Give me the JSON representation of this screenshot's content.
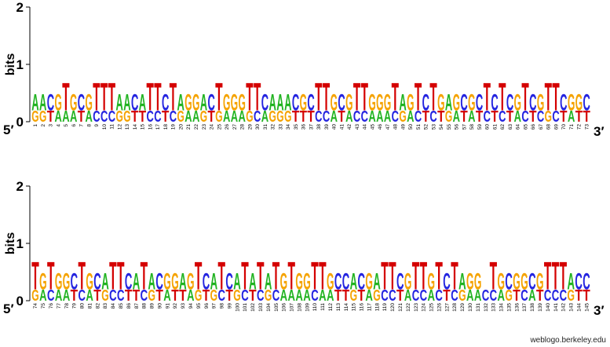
{
  "chart_data": {
    "type": "logo",
    "ylabel": "bits",
    "ylim": [
      0,
      2
    ],
    "yticks": [
      0,
      1,
      2
    ],
    "colors": {
      "A": "#21b321",
      "C": "#2424e0",
      "G": "#f5a300",
      "T": "#d40000"
    },
    "panels": [
      {
        "start_label": "5′",
        "end_label": "3′",
        "positions": [
          1,
          2,
          3,
          4,
          5,
          6,
          7,
          8,
          9,
          10,
          11,
          12,
          13,
          14,
          15,
          16,
          17,
          18,
          19,
          20,
          21,
          22,
          23,
          24,
          25,
          26,
          27,
          28,
          29,
          30,
          31,
          32,
          33,
          34,
          35,
          36,
          37,
          38,
          39,
          40,
          41,
          42,
          43,
          44,
          45,
          46,
          47,
          48,
          49,
          50,
          51,
          52,
          53,
          54,
          55,
          56,
          57,
          58,
          59,
          60,
          61,
          62,
          63,
          64,
          65,
          66,
          67,
          68,
          69,
          70,
          71,
          72,
          73
        ],
        "letters": [
          [
            "G",
            "A"
          ],
          [
            "G",
            "A"
          ],
          [
            "T",
            "C"
          ],
          [
            "A",
            "G"
          ],
          [
            "A",
            "T"
          ],
          [
            "A",
            "G"
          ],
          [
            "T",
            "C"
          ],
          [
            "A",
            "G"
          ],
          [
            "C",
            "T"
          ],
          [
            "C",
            "T"
          ],
          [
            "C",
            "T"
          ],
          [
            "G",
            "A"
          ],
          [
            "G",
            "A"
          ],
          [
            "T",
            "C"
          ],
          [
            "T",
            "A"
          ],
          [
            "C",
            "T"
          ],
          [
            "C",
            "T"
          ],
          [
            "T",
            "C"
          ],
          [
            "C",
            "T"
          ],
          [
            "G",
            "A"
          ],
          [
            "A",
            "G"
          ],
          [
            "A",
            "G"
          ],
          [
            "G",
            "A"
          ],
          [
            "T",
            "C"
          ],
          [
            "G",
            "T"
          ],
          [
            "A",
            "G"
          ],
          [
            "A",
            "G"
          ],
          [
            "A",
            "G"
          ],
          [
            "G",
            "T"
          ],
          [
            "C",
            "T"
          ],
          [
            "A",
            "C"
          ],
          [
            "G",
            "A"
          ],
          [
            "G",
            "A"
          ],
          [
            "G",
            "A"
          ],
          [
            "T",
            "C"
          ],
          [
            "T",
            "G"
          ],
          [
            "T",
            "C"
          ],
          [
            "C",
            "T"
          ],
          [
            "C",
            "T"
          ],
          [
            "A",
            "G"
          ],
          [
            "T",
            "C"
          ],
          [
            "A",
            "G"
          ],
          [
            "C",
            "T"
          ],
          [
            "C",
            "T"
          ],
          [
            "A",
            "G"
          ],
          [
            "A",
            "G"
          ],
          [
            "A",
            "G"
          ],
          [
            "C",
            "T"
          ],
          [
            "G",
            "A"
          ],
          [
            "A",
            "G"
          ],
          [
            "C",
            "T"
          ],
          [
            "T",
            "C"
          ],
          [
            "C",
            "T"
          ],
          [
            "T",
            "G"
          ],
          [
            "G",
            "A"
          ],
          [
            "A",
            "G"
          ],
          [
            "T",
            "C"
          ],
          [
            "A",
            "G"
          ],
          [
            "T",
            "C"
          ],
          [
            "C",
            "T"
          ],
          [
            "T",
            "C"
          ],
          [
            "C",
            "T"
          ],
          [
            "T",
            "C"
          ],
          [
            "A",
            "G"
          ],
          [
            "C",
            "T"
          ],
          [
            "T",
            "C"
          ],
          [
            "C",
            "G"
          ],
          [
            "G",
            "T"
          ],
          [
            "C",
            "T"
          ],
          [
            "T",
            "C"
          ],
          [
            "A",
            "G"
          ],
          [
            "T",
            "G"
          ],
          [
            "T",
            "C"
          ]
        ],
        "bits": [
          [
            0.2,
            0.3
          ],
          [
            0.2,
            0.3
          ],
          [
            0.2,
            0.3
          ],
          [
            0.2,
            0.3
          ],
          [
            0.2,
            0.5
          ],
          [
            0.2,
            0.3
          ],
          [
            0.2,
            0.3
          ],
          [
            0.2,
            0.3
          ],
          [
            0.2,
            0.5
          ],
          [
            0.2,
            0.5
          ],
          [
            0.2,
            0.5
          ],
          [
            0.2,
            0.3
          ],
          [
            0.2,
            0.3
          ],
          [
            0.2,
            0.3
          ],
          [
            0.2,
            0.3
          ],
          [
            0.2,
            0.5
          ],
          [
            0.2,
            0.5
          ],
          [
            0.2,
            0.3
          ],
          [
            0.2,
            0.5
          ],
          [
            0.2,
            0.3
          ],
          [
            0.2,
            0.3
          ],
          [
            0.2,
            0.3
          ],
          [
            0.2,
            0.3
          ],
          [
            0.2,
            0.3
          ],
          [
            0.2,
            0.5
          ],
          [
            0.2,
            0.3
          ],
          [
            0.2,
            0.3
          ],
          [
            0.2,
            0.3
          ],
          [
            0.2,
            0.5
          ],
          [
            0.2,
            0.5
          ],
          [
            0.2,
            0.3
          ],
          [
            0.2,
            0.3
          ],
          [
            0.2,
            0.3
          ],
          [
            0.2,
            0.3
          ],
          [
            0.2,
            0.3
          ],
          [
            0.2,
            0.3
          ],
          [
            0.2,
            0.3
          ],
          [
            0.2,
            0.5
          ],
          [
            0.2,
            0.5
          ],
          [
            0.2,
            0.3
          ],
          [
            0.2,
            0.3
          ],
          [
            0.2,
            0.3
          ],
          [
            0.2,
            0.5
          ],
          [
            0.2,
            0.5
          ],
          [
            0.2,
            0.3
          ],
          [
            0.2,
            0.3
          ],
          [
            0.2,
            0.3
          ],
          [
            0.2,
            0.5
          ],
          [
            0.2,
            0.3
          ],
          [
            0.2,
            0.3
          ],
          [
            0.2,
            0.5
          ],
          [
            0.2,
            0.3
          ],
          [
            0.2,
            0.5
          ],
          [
            0.2,
            0.3
          ],
          [
            0.2,
            0.3
          ],
          [
            0.2,
            0.3
          ],
          [
            0.2,
            0.3
          ],
          [
            0.2,
            0.3
          ],
          [
            0.2,
            0.3
          ],
          [
            0.2,
            0.5
          ],
          [
            0.2,
            0.3
          ],
          [
            0.2,
            0.5
          ],
          [
            0.2,
            0.3
          ],
          [
            0.2,
            0.3
          ],
          [
            0.2,
            0.5
          ],
          [
            0.2,
            0.3
          ],
          [
            0.2,
            0.3
          ],
          [
            0.2,
            0.5
          ],
          [
            0.2,
            0.5
          ],
          [
            0.2,
            0.3
          ],
          [
            0.2,
            0.3
          ],
          [
            0.2,
            0.3
          ],
          [
            0.2,
            0.3
          ]
        ]
      },
      {
        "start_label": "5′",
        "end_label": "3′",
        "positions": [
          74,
          75,
          76,
          77,
          78,
          79,
          80,
          81,
          82,
          83,
          84,
          85,
          86,
          87,
          88,
          89,
          90,
          91,
          92,
          93,
          94,
          95,
          96,
          97,
          98,
          99,
          100,
          101,
          102,
          103,
          104,
          105,
          106,
          107,
          108,
          109,
          110,
          111,
          112,
          113,
          114,
          115,
          116,
          117,
          118,
          119,
          120,
          121,
          122,
          123,
          124,
          125,
          126,
          127,
          128,
          129,
          130,
          131,
          132,
          133,
          134,
          135,
          136,
          137,
          138,
          139,
          140,
          141,
          142,
          143,
          144,
          145
        ],
        "letters": [
          [
            "G",
            "T"
          ],
          [
            "A",
            "G"
          ],
          [
            "C",
            "T"
          ],
          [
            "A",
            "G"
          ],
          [
            "A",
            "G"
          ],
          [
            "T",
            "C"
          ],
          [
            "C",
            "T"
          ],
          [
            "A",
            "G"
          ],
          [
            "T",
            "C"
          ],
          [
            "G",
            "A"
          ],
          [
            "C",
            "T"
          ],
          [
            "C",
            "T"
          ],
          [
            "T",
            "C"
          ],
          [
            "T",
            "A"
          ],
          [
            "C",
            "T"
          ],
          [
            "G",
            "A"
          ],
          [
            "T",
            "C"
          ],
          [
            "A",
            "G"
          ],
          [
            "T",
            "G"
          ],
          [
            "T",
            "A"
          ],
          [
            "A",
            "G"
          ],
          [
            "G",
            "T"
          ],
          [
            "T",
            "C"
          ],
          [
            "G",
            "A"
          ],
          [
            "C",
            "T"
          ],
          [
            "T",
            "C"
          ],
          [
            "G",
            "A"
          ],
          [
            "C",
            "T"
          ],
          [
            "T",
            "A"
          ],
          [
            "C",
            "T"
          ],
          [
            "G",
            "A"
          ],
          [
            "C",
            "T"
          ],
          [
            "A",
            "G"
          ],
          [
            "A",
            "T"
          ],
          [
            "A",
            "G"
          ],
          [
            "A",
            "G"
          ],
          [
            "C",
            "T"
          ],
          [
            "A",
            "T"
          ],
          [
            "A",
            "G"
          ],
          [
            "T",
            "C"
          ],
          [
            "T",
            "C"
          ],
          [
            "G",
            "A"
          ],
          [
            "T",
            "C"
          ],
          [
            "A",
            "G"
          ],
          [
            "G",
            "A"
          ],
          [
            "C",
            "T"
          ],
          [
            "C",
            "T"
          ],
          [
            "T",
            "C"
          ],
          [
            "A",
            "G"
          ],
          [
            "C",
            "T"
          ],
          [
            "C",
            "T"
          ],
          [
            "A",
            "G"
          ],
          [
            "C",
            "T"
          ],
          [
            "T",
            "C"
          ],
          [
            "C",
            "T"
          ],
          [
            "G",
            "A"
          ],
          [
            "A",
            "G"
          ],
          [
            "A",
            "G"
          ],
          [
            "C"
          ],
          [
            "C",
            "T"
          ],
          [
            "A",
            "G"
          ],
          [
            "G",
            "C"
          ],
          [
            "T",
            "G"
          ],
          [
            "C",
            "G"
          ],
          [
            "A",
            "C"
          ],
          [
            "T",
            "G"
          ],
          [
            "C",
            "T"
          ],
          [
            "C",
            "T"
          ],
          [
            "C",
            "T"
          ],
          [
            "G",
            "A"
          ],
          [
            "T",
            "C"
          ],
          [
            "T",
            "C"
          ]
        ],
        "bits": [
          [
            0.2,
            0.5
          ],
          [
            0.2,
            0.3
          ],
          [
            0.2,
            0.5
          ],
          [
            0.2,
            0.3
          ],
          [
            0.2,
            0.3
          ],
          [
            0.2,
            0.3
          ],
          [
            0.2,
            0.5
          ],
          [
            0.2,
            0.3
          ],
          [
            0.2,
            0.3
          ],
          [
            0.2,
            0.3
          ],
          [
            0.2,
            0.5
          ],
          [
            0.2,
            0.5
          ],
          [
            0.2,
            0.3
          ],
          [
            0.2,
            0.3
          ],
          [
            0.2,
            0.5
          ],
          [
            0.2,
            0.3
          ],
          [
            0.2,
            0.3
          ],
          [
            0.2,
            0.3
          ],
          [
            0.2,
            0.3
          ],
          [
            0.2,
            0.3
          ],
          [
            0.2,
            0.3
          ],
          [
            0.2,
            0.5
          ],
          [
            0.2,
            0.3
          ],
          [
            0.2,
            0.3
          ],
          [
            0.2,
            0.5
          ],
          [
            0.2,
            0.3
          ],
          [
            0.2,
            0.3
          ],
          [
            0.2,
            0.5
          ],
          [
            0.2,
            0.3
          ],
          [
            0.2,
            0.5
          ],
          [
            0.2,
            0.3
          ],
          [
            0.2,
            0.5
          ],
          [
            0.2,
            0.3
          ],
          [
            0.2,
            0.5
          ],
          [
            0.2,
            0.3
          ],
          [
            0.2,
            0.3
          ],
          [
            0.2,
            0.5
          ],
          [
            0.2,
            0.5
          ],
          [
            0.2,
            0.3
          ],
          [
            0.2,
            0.3
          ],
          [
            0.2,
            0.3
          ],
          [
            0.2,
            0.3
          ],
          [
            0.2,
            0.3
          ],
          [
            0.2,
            0.3
          ],
          [
            0.2,
            0.3
          ],
          [
            0.2,
            0.5
          ],
          [
            0.2,
            0.5
          ],
          [
            0.2,
            0.3
          ],
          [
            0.2,
            0.3
          ],
          [
            0.2,
            0.5
          ],
          [
            0.2,
            0.5
          ],
          [
            0.2,
            0.3
          ],
          [
            0.2,
            0.5
          ],
          [
            0.2,
            0.3
          ],
          [
            0.2,
            0.5
          ],
          [
            0.2,
            0.3
          ],
          [
            0.2,
            0.3
          ],
          [
            0.2,
            0.3
          ],
          [
            0.2
          ],
          [
            0.2,
            0.5
          ],
          [
            0.2,
            0.3
          ],
          [
            0.2,
            0.3
          ],
          [
            0.2,
            0.3
          ],
          [
            0.2,
            0.3
          ],
          [
            0.2,
            0.3
          ],
          [
            0.2,
            0.3
          ],
          [
            0.2,
            0.5
          ],
          [
            0.2,
            0.5
          ],
          [
            0.2,
            0.5
          ],
          [
            0.2,
            0.3
          ],
          [
            0.2,
            0.3
          ],
          [
            0.2,
            0.3
          ]
        ]
      }
    ]
  },
  "footer": "weblogo.berkeley.edu"
}
